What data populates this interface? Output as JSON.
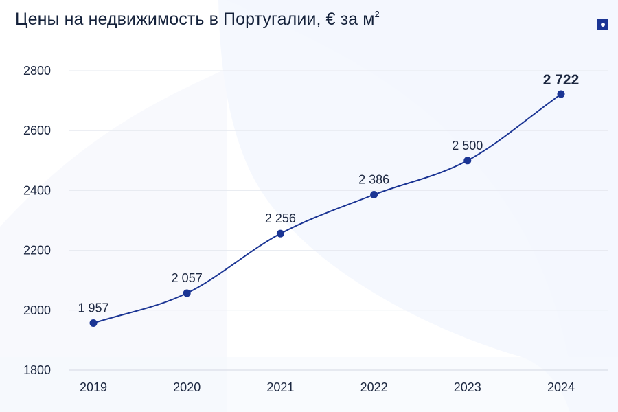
{
  "title": {
    "text": "Цены на недвижимость в Португалии, € за м",
    "superscript": "2"
  },
  "logo": {
    "icon": "square-dot-logo-icon",
    "color": "#1b3594"
  },
  "colors": {
    "line": "#1b3594",
    "marker": "#1b3594",
    "grid": "#e6e9ef",
    "text": "#14213a",
    "background": "#f5f8fd"
  },
  "chart_data": {
    "type": "line",
    "title": "Цены на недвижимость в Португалии, € за м²",
    "xlabel": "",
    "ylabel": "",
    "categories": [
      "2019",
      "2020",
      "2021",
      "2022",
      "2023",
      "2024"
    ],
    "values": [
      1957,
      2057,
      2256,
      2386,
      2500,
      2722
    ],
    "data_labels": [
      "1 957",
      "2 057",
      "2 256",
      "2 386",
      "2 500",
      "2 722"
    ],
    "y_ticks": [
      "1800",
      "2000",
      "2200",
      "2400",
      "2600",
      "2800"
    ],
    "ylim": [
      1800,
      2800
    ],
    "grid": true,
    "legend": "none",
    "smooth": true,
    "markers": true
  }
}
